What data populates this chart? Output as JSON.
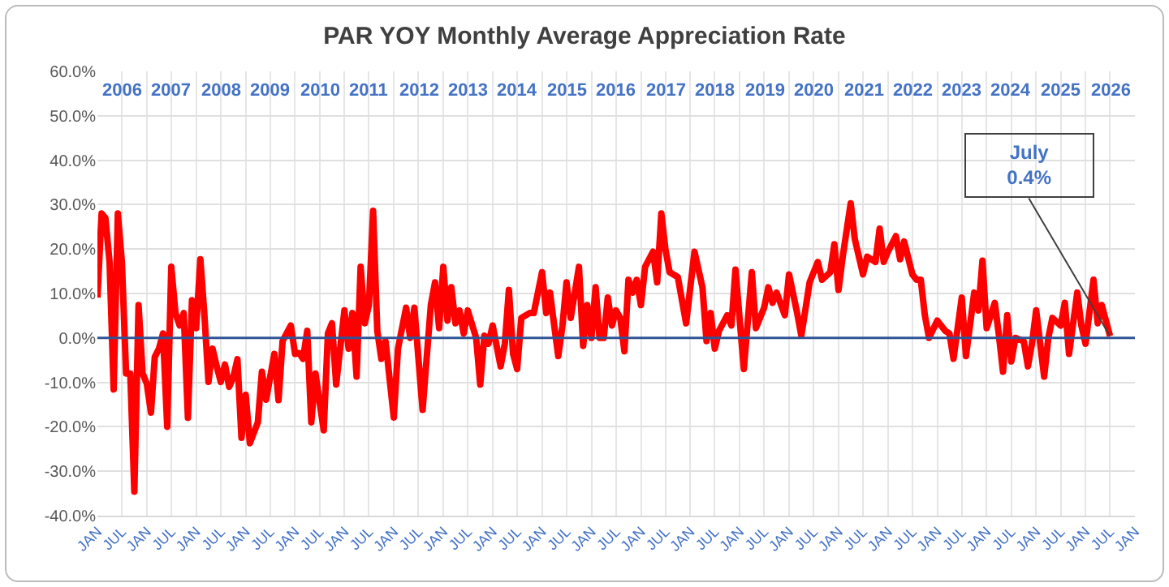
{
  "chart_data": {
    "type": "line",
    "title": "PAR YOY Monthly Average Appreciation Rate",
    "x": [
      "2006-01",
      "2006-02",
      "2006-03",
      "2006-04",
      "2006-05",
      "2006-06",
      "2006-07",
      "2006-08",
      "2006-09",
      "2006-10",
      "2006-11",
      "2006-12",
      "2007-01",
      "2007-02",
      "2007-03",
      "2007-04",
      "2007-05",
      "2007-06",
      "2007-07",
      "2007-08",
      "2007-09",
      "2007-10",
      "2007-11",
      "2007-12",
      "2008-01",
      "2008-02",
      "2008-03",
      "2008-04",
      "2008-05",
      "2008-06",
      "2008-07",
      "2008-08",
      "2008-09",
      "2008-10",
      "2008-11",
      "2008-12",
      "2009-01",
      "2009-02",
      "2009-04",
      "2009-05",
      "2009-06",
      "2009-08",
      "2009-09",
      "2009-10",
      "2009-12",
      "2010-01",
      "2010-02",
      "2010-03",
      "2010-04",
      "2010-05",
      "2010-06",
      "2010-08",
      "2010-09",
      "2010-10",
      "2010-11",
      "2011-01",
      "2011-02",
      "2011-03",
      "2011-04",
      "2011-05",
      "2011-06",
      "2011-07",
      "2011-08",
      "2011-09",
      "2011-10",
      "2011-11",
      "2012-01",
      "2012-02",
      "2012-04",
      "2012-05",
      "2012-06",
      "2012-08",
      "2012-10",
      "2012-11",
      "2012-12",
      "2013-01",
      "2013-02",
      "2013-03",
      "2013-04",
      "2013-05",
      "2013-06",
      "2013-07",
      "2013-09",
      "2013-10",
      "2013-11",
      "2013-12",
      "2014-01",
      "2014-03",
      "2014-04",
      "2014-05",
      "2014-06",
      "2014-07",
      "2014-08",
      "2014-10",
      "2014-11",
      "2015-01",
      "2015-02",
      "2015-03",
      "2015-04",
      "2015-05",
      "2015-06",
      "2015-07",
      "2015-08",
      "2015-10",
      "2015-11",
      "2015-12",
      "2016-01",
      "2016-02",
      "2016-03",
      "2016-04",
      "2016-05",
      "2016-06",
      "2016-07",
      "2016-08",
      "2016-09",
      "2016-10",
      "2016-11",
      "2016-12",
      "2017-01",
      "2017-02",
      "2017-04",
      "2017-05",
      "2017-06",
      "2017-07",
      "2017-08",
      "2017-10",
      "2017-12",
      "2018-02",
      "2018-04",
      "2018-05",
      "2018-06",
      "2018-07",
      "2018-08",
      "2018-10",
      "2018-11",
      "2018-12",
      "2019-02",
      "2019-04",
      "2019-05",
      "2019-07",
      "2019-08",
      "2019-09",
      "2019-10",
      "2019-12",
      "2020-01",
      "2020-03",
      "2020-04",
      "2020-06",
      "2020-08",
      "2020-09",
      "2020-11",
      "2020-12",
      "2021-01",
      "2021-02",
      "2021-04",
      "2021-05",
      "2021-07",
      "2021-08",
      "2021-10",
      "2021-11",
      "2021-12",
      "2022-01",
      "2022-03",
      "2022-04",
      "2022-05",
      "2022-07",
      "2022-08",
      "2022-09",
      "2022-10",
      "2022-11",
      "2023-01",
      "2023-03",
      "2023-04",
      "2023-05",
      "2023-07",
      "2023-08",
      "2023-10",
      "2023-11",
      "2023-12",
      "2024-01",
      "2024-03",
      "2024-04",
      "2024-05",
      "2024-06",
      "2024-07",
      "2024-08",
      "2024-10",
      "2024-11",
      "2024-12",
      "2025-01",
      "2025-03",
      "2025-04",
      "2025-05",
      "2025-07",
      "2025-08",
      "2025-09",
      "2025-11",
      "2025-12",
      "2026-01",
      "2026-03",
      "2026-04",
      "2026-05",
      "2026-07"
    ],
    "series": [
      {
        "color": "#ff0000",
        "values": [
          9.1,
          28,
          27,
          17,
          -11.6,
          28,
          17,
          -8,
          -8,
          -34.6,
          7.4,
          -8,
          -10.3,
          -16.8,
          -4.3,
          -2.4,
          1,
          -20,
          16,
          5.6,
          2.8,
          5.6,
          -18,
          8.5,
          2.2,
          17.7,
          5.6,
          -9.9,
          -2.4,
          -6.4,
          -9.9,
          -6,
          -11,
          -8.9,
          -4.8,
          -22.5,
          -12.8,
          -23.7,
          -19,
          -7.6,
          -13.9,
          -3.6,
          -14,
          -0.7,
          2.8,
          -3.6,
          -3.4,
          -4.7,
          1.6,
          -19,
          -8,
          -20.8,
          1,
          3.3,
          -10.5,
          6.2,
          -2.4,
          5.6,
          -8.7,
          16,
          3.3,
          7.4,
          28.6,
          1.6,
          -4.7,
          -0.7,
          -17.9,
          -2.4,
          6.8,
          0,
          6.8,
          -16.2,
          7.4,
          12.5,
          2.2,
          16,
          3.9,
          11.4,
          3.3,
          6.2,
          1,
          6.2,
          0,
          -10.5,
          0.5,
          -1.3,
          2.8,
          -6.4,
          -1.3,
          10.8,
          -3.6,
          -7,
          4.5,
          5.6,
          5.6,
          14.8,
          5.6,
          10.2,
          2.8,
          -4.1,
          2.8,
          12.5,
          4.5,
          16,
          -1.8,
          7.4,
          0,
          11.4,
          0,
          0,
          9.1,
          2.8,
          6.2,
          4.5,
          -3,
          13.1,
          10.2,
          13.1,
          7.4,
          16,
          19.4,
          12.5,
          28,
          20,
          14.8,
          13.7,
          3.3,
          19.4,
          11.4,
          -0.7,
          5.6,
          -2.4,
          1.6,
          5.1,
          2.8,
          15.4,
          -7,
          14.8,
          2.2,
          6.8,
          11.4,
          7.9,
          10.2,
          5.1,
          14.3,
          5.6,
          0.5,
          12.5,
          17.1,
          13.1,
          14.8,
          21.1,
          10.8,
          18.3,
          30.3,
          22.3,
          14.3,
          18.3,
          17.1,
          24.6,
          17.1,
          19.4,
          22.9,
          17.7,
          21.7,
          14.3,
          13.1,
          13.1,
          5.1,
          0,
          3.9,
          1.6,
          1,
          -4.7,
          9.1,
          -4.1,
          10.2,
          6.2,
          17.4,
          2.2,
          7.9,
          0.5,
          -7.6,
          5.1,
          -5.3,
          0,
          -0.7,
          -6.4,
          -1.3,
          6.2,
          -8.7,
          0,
          4.5,
          2.8,
          7.9,
          -3.6,
          10.2,
          2.8,
          -1.3,
          13.1,
          3.3,
          7.4,
          0.4
        ]
      }
    ],
    "xlim": [
      "2006-01",
      "2027-01"
    ],
    "xticks": [
      {
        "value": "2006-01",
        "label": "JAN"
      },
      {
        "value": "2006-07",
        "label": "JUL"
      },
      {
        "value": "2007-01",
        "label": "JAN"
      },
      {
        "value": "2007-07",
        "label": "JUL"
      },
      {
        "value": "2008-01",
        "label": "JAN"
      },
      {
        "value": "2008-07",
        "label": "JUL"
      },
      {
        "value": "2009-01",
        "label": "JAN"
      },
      {
        "value": "2009-07",
        "label": "JUL"
      },
      {
        "value": "2010-01",
        "label": "JAN"
      },
      {
        "value": "2010-07",
        "label": "JUL"
      },
      {
        "value": "2011-01",
        "label": "JAN"
      },
      {
        "value": "2011-07",
        "label": "JUL"
      },
      {
        "value": "2012-01",
        "label": "JAN"
      },
      {
        "value": "2012-07",
        "label": "JUL"
      },
      {
        "value": "2013-01",
        "label": "JAN"
      },
      {
        "value": "2013-07",
        "label": "JUL"
      },
      {
        "value": "2014-01",
        "label": "JAN"
      },
      {
        "value": "2014-07",
        "label": "JUL"
      },
      {
        "value": "2015-01",
        "label": "JAN"
      },
      {
        "value": "2015-07",
        "label": "JUL"
      },
      {
        "value": "2016-01",
        "label": "JAN"
      },
      {
        "value": "2016-07",
        "label": "JUL"
      },
      {
        "value": "2017-01",
        "label": "JAN"
      },
      {
        "value": "2017-07",
        "label": "JUL"
      },
      {
        "value": "2018-01",
        "label": "JAN"
      },
      {
        "value": "2018-07",
        "label": "JUL"
      },
      {
        "value": "2019-01",
        "label": "JAN"
      },
      {
        "value": "2019-07",
        "label": "JUL"
      },
      {
        "value": "2020-01",
        "label": "JAN"
      },
      {
        "value": "2020-07",
        "label": "JUL"
      },
      {
        "value": "2021-01",
        "label": "JAN"
      },
      {
        "value": "2021-07",
        "label": "JUL"
      },
      {
        "value": "2022-01",
        "label": "JAN"
      },
      {
        "value": "2022-07",
        "label": "JUL"
      },
      {
        "value": "2023-01",
        "label": "JAN"
      },
      {
        "value": "2023-07",
        "label": "JUL"
      },
      {
        "value": "2024-01",
        "label": "JAN"
      },
      {
        "value": "2024-07",
        "label": "JUL"
      },
      {
        "value": "2025-01",
        "label": "JAN"
      },
      {
        "value": "2025-07",
        "label": "JUL"
      },
      {
        "value": "2026-01",
        "label": "JAN"
      },
      {
        "value": "2026-07",
        "label": "JUL"
      },
      {
        "value": "2027-01",
        "label": "JAN"
      }
    ],
    "x2lim": [
      "2006-01",
      "2027-01"
    ],
    "x2ticks": [
      {
        "value": "2006-07",
        "label": "2006"
      },
      {
        "value": "2007-07",
        "label": "2007"
      },
      {
        "value": "2008-07",
        "label": "2008"
      },
      {
        "value": "2009-07",
        "label": "2009"
      },
      {
        "value": "2010-07",
        "label": "2010"
      },
      {
        "value": "2011-07",
        "label": "2011"
      },
      {
        "value": "2012-07",
        "label": "2012"
      },
      {
        "value": "2013-07",
        "label": "2013"
      },
      {
        "value": "2014-07",
        "label": "2014"
      },
      {
        "value": "2015-07",
        "label": "2015"
      },
      {
        "value": "2016-07",
        "label": "2016"
      },
      {
        "value": "2017-07",
        "label": "2017"
      },
      {
        "value": "2018-07",
        "label": "2018"
      },
      {
        "value": "2019-07",
        "label": "2019"
      },
      {
        "value": "2020-07",
        "label": "2020"
      },
      {
        "value": "2021-07",
        "label": "2021"
      },
      {
        "value": "2022-07",
        "label": "2022"
      },
      {
        "value": "2023-07",
        "label": "2023"
      },
      {
        "value": "2024-07",
        "label": "2024"
      },
      {
        "value": "2025-07",
        "label": "2025"
      },
      {
        "value": "2026-07",
        "label": "2026"
      }
    ],
    "ylim": [
      -40,
      60
    ],
    "yticks": [
      {
        "value": -40,
        "label": "-40.0%"
      },
      {
        "value": -30,
        "label": "-30.0%"
      },
      {
        "value": -20,
        "label": "-20.0%"
      },
      {
        "value": -10,
        "label": "-10.0%"
      },
      {
        "value": 0,
        "label": "0.0%"
      },
      {
        "value": 10,
        "label": "10.0%"
      },
      {
        "value": 20,
        "label": "20.0%"
      },
      {
        "value": 30,
        "label": "30.0%"
      },
      {
        "value": 40,
        "label": "40.0%"
      },
      {
        "value": 50,
        "label": "50.0%"
      },
      {
        "value": 60,
        "label": "60.0%"
      }
    ],
    "ref_lines": [
      {
        "axis": "y",
        "value": 0,
        "color": "#2f5597"
      }
    ],
    "annotations": [
      {
        "text": "July\n0.4%",
        "x": "2026-07",
        "y": 0.4
      }
    ],
    "grid": true,
    "line_style": "solid"
  }
}
